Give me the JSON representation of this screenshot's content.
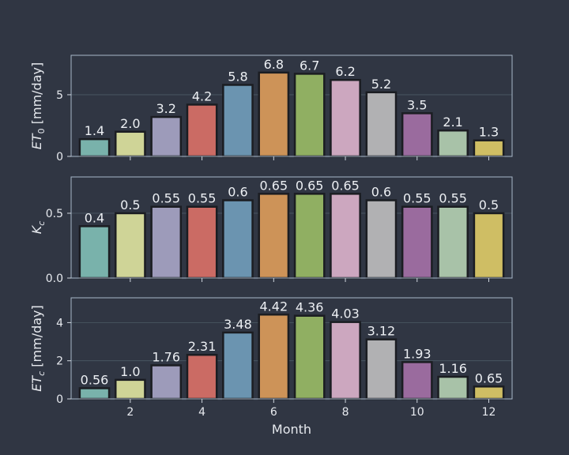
{
  "chart_data": [
    {
      "type": "bar",
      "x": [
        1,
        2,
        3,
        4,
        5,
        6,
        7,
        8,
        9,
        10,
        11,
        12
      ],
      "values": [
        1.4,
        2.0,
        3.2,
        4.2,
        5.8,
        6.8,
        6.7,
        6.2,
        5.2,
        3.5,
        2.1,
        1.3
      ],
      "value_labels": [
        "1.4",
        "2.0",
        "3.2",
        "4.2",
        "5.8",
        "6.8",
        "6.7",
        "6.2",
        "5.2",
        "3.5",
        "2.1",
        "1.3"
      ],
      "ylabel": "ET",
      "ylabel_sub": "0",
      "ylabel_unit": " [mm/day]",
      "yticks": [
        0,
        5
      ],
      "ytick_labels": [
        "0",
        "5"
      ],
      "ylim": [
        0,
        8.2
      ],
      "xticks": [],
      "xtick_labels": [],
      "xlabel": ""
    },
    {
      "type": "bar",
      "x": [
        1,
        2,
        3,
        4,
        5,
        6,
        7,
        8,
        9,
        10,
        11,
        12
      ],
      "values": [
        0.4,
        0.5,
        0.55,
        0.55,
        0.6,
        0.65,
        0.65,
        0.65,
        0.6,
        0.55,
        0.55,
        0.5
      ],
      "value_labels": [
        "0.4",
        "0.5",
        "0.55",
        "0.55",
        "0.6",
        "0.65",
        "0.65",
        "0.65",
        "0.6",
        "0.55",
        "0.55",
        "0.5"
      ],
      "ylabel": "K",
      "ylabel_sub": "c",
      "ylabel_unit": "",
      "yticks": [
        0,
        0.5
      ],
      "ytick_labels": [
        "0.0",
        "0.5"
      ],
      "ylim": [
        0,
        0.78
      ],
      "xticks": [],
      "xtick_labels": [],
      "xlabel": ""
    },
    {
      "type": "bar",
      "x": [
        1,
        2,
        3,
        4,
        5,
        6,
        7,
        8,
        9,
        10,
        11,
        12
      ],
      "values": [
        0.56,
        1.0,
        1.76,
        2.31,
        3.48,
        4.42,
        4.36,
        4.03,
        3.12,
        1.93,
        1.16,
        0.65
      ],
      "value_labels": [
        "0.56",
        "1.0",
        "1.76",
        "2.31",
        "3.48",
        "4.42",
        "4.36",
        "4.03",
        "3.12",
        "1.93",
        "1.16",
        "0.65"
      ],
      "ylabel": "ET",
      "ylabel_sub": "c",
      "ylabel_unit": " [mm/day]",
      "yticks": [
        0,
        2,
        4
      ],
      "ytick_labels": [
        "0",
        "2",
        "4"
      ],
      "ylim": [
        0,
        5.3
      ],
      "xticks": [
        2,
        4,
        6,
        8,
        10,
        12
      ],
      "xtick_labels": [
        "2",
        "4",
        "6",
        "8",
        "10",
        "12"
      ],
      "xlabel": "Month"
    }
  ],
  "colors": [
    "#79b2ab",
    "#cfd497",
    "#9d9bba",
    "#cb6b64",
    "#6b94b0",
    "#cd9358",
    "#90af62",
    "#cca7bf",
    "#b1b1b3",
    "#9a6b9e",
    "#a8c2a8",
    "#cfbe64"
  ]
}
